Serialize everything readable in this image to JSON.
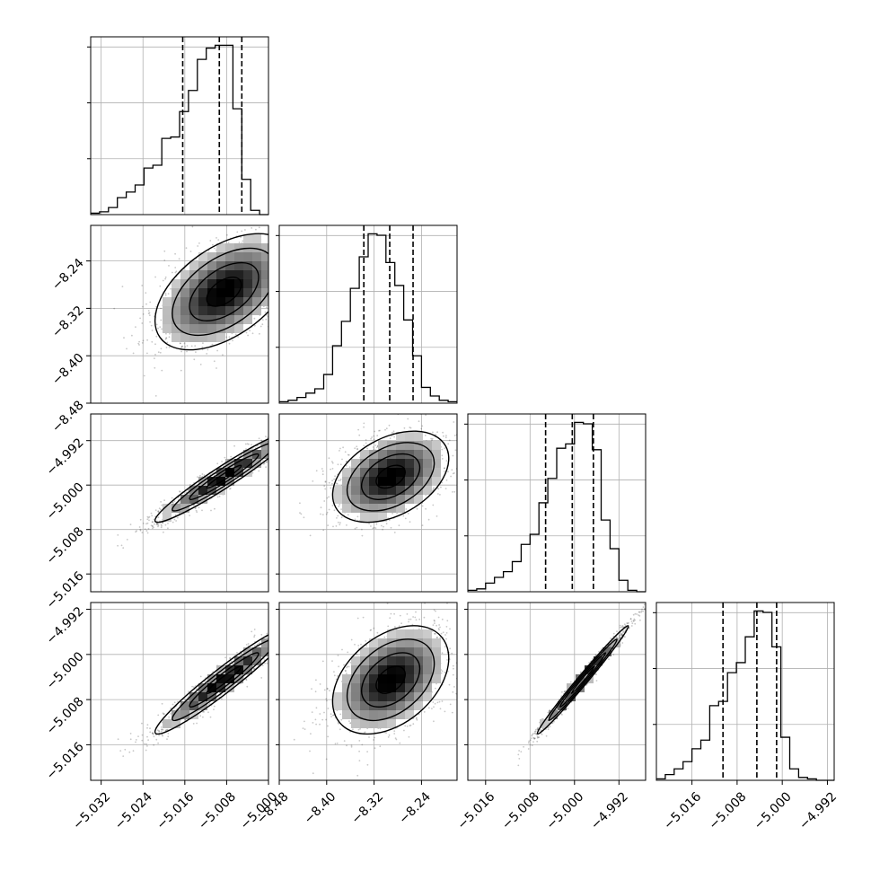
{
  "chart_data": {
    "type": "corner",
    "description_units": "data units",
    "params": [
      {
        "id": "p0",
        "range": [
          -5.034,
          -5.0
        ],
        "ticks": [
          -5.032,
          -5.024,
          -5.016,
          -5.008,
          -5.0
        ],
        "tick_labels": [
          "−5.032",
          "−5.024",
          "−5.016",
          "−5.008",
          "−5.000"
        ],
        "quantiles": [
          -5.0164,
          -5.0094,
          -5.0051
        ]
      },
      {
        "id": "p1",
        "range": [
          -8.48,
          -8.18
        ],
        "ticks": [
          -8.48,
          -8.4,
          -8.32,
          -8.24
        ],
        "tick_labels": [
          "−8.48",
          "−8.40",
          "−8.32",
          "−8.24"
        ],
        "quantiles": [
          -8.3373,
          -8.2936,
          -8.2542
        ]
      },
      {
        "id": "p2",
        "range": [
          -5.0192,
          -4.9872
        ],
        "ticks": [
          -5.016,
          -5.008,
          -5.0,
          -4.992
        ],
        "tick_labels": [
          "−5.016",
          "−5.008",
          "−5.000",
          "−4.992"
        ],
        "quantiles": [
          -5.0052,
          -5.0004,
          -4.9966
        ]
      },
      {
        "id": "p3",
        "range": [
          -5.0223,
          -4.9908
        ],
        "ticks": [
          -5.016,
          -5.008,
          -5.0,
          -4.992
        ],
        "tick_labels": [
          "−5.016",
          "−5.008",
          "−5.000",
          "−4.992"
        ],
        "quantiles": [
          -5.0105,
          -5.0045,
          -5.001
        ]
      }
    ],
    "histograms": [
      {
        "param": 0,
        "edges_count": 20,
        "counts": [
          1,
          2,
          5,
          12,
          16,
          21,
          33,
          35,
          54,
          55,
          73,
          88,
          110,
          118,
          120,
          120,
          75,
          25,
          3,
          0
        ]
      },
      {
        "param": 1,
        "edges_count": 20,
        "counts": [
          1,
          2,
          4,
          7,
          10,
          20,
          40,
          57,
          80,
          102,
          118,
          117,
          98,
          82,
          58,
          33,
          11,
          5,
          2,
          1
        ]
      },
      {
        "param": 2,
        "edges_count": 20,
        "counts": [
          1,
          2,
          6,
          10,
          14,
          21,
          33,
          40,
          62,
          79,
          100,
          103,
          118,
          117,
          99,
          50,
          30,
          8,
          1,
          0
        ]
      },
      {
        "param": 3,
        "edges_count": 20,
        "counts": [
          1,
          4,
          8,
          13,
          22,
          28,
          52,
          55,
          75,
          82,
          100,
          118,
          117,
          93,
          30,
          8,
          2,
          1,
          0,
          0
        ]
      }
    ],
    "pairs": [
      {
        "x": 0,
        "y": 1,
        "center": [
          -5.0085,
          -8.292
        ],
        "sigma": [
          0.0066,
          0.049
        ],
        "rho": 0.5
      },
      {
        "x": 0,
        "y": 2,
        "center": [
          -5.0085,
          -4.9985
        ],
        "sigma": [
          0.0066,
          0.0041
        ],
        "rho": 0.96
      },
      {
        "x": 1,
        "y": 2,
        "center": [
          -8.292,
          -4.9985
        ],
        "sigma": [
          0.049,
          0.0041
        ],
        "rho": 0.4
      },
      {
        "x": 0,
        "y": 3,
        "center": [
          -5.0085,
          -5.0045
        ],
        "sigma": [
          0.0066,
          0.0048
        ],
        "rho": 0.96
      },
      {
        "x": 1,
        "y": 3,
        "center": [
          -8.292,
          -5.0045
        ],
        "sigma": [
          0.049,
          0.0048
        ],
        "rho": 0.4
      },
      {
        "x": 2,
        "y": 3,
        "center": [
          -4.9985,
          -5.0045
        ],
        "sigma": [
          0.0041,
          0.0048
        ],
        "rho": 0.99
      }
    ],
    "grid": true
  },
  "colors": {
    "line": "#000000",
    "grid": "#b0b0b0",
    "density_dark": "#000000",
    "density_light": "#ffffff",
    "scatter": "#222222"
  }
}
